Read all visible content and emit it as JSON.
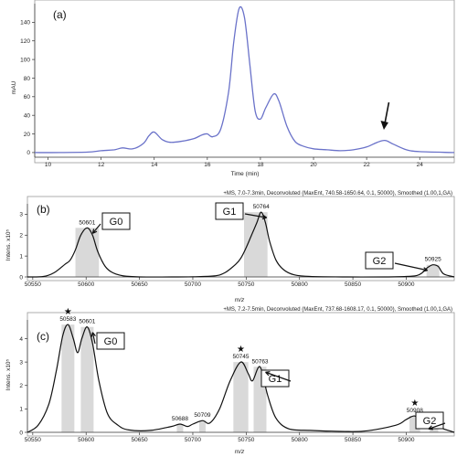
{
  "chart_data": [
    {
      "panel": "(a)",
      "type": "line",
      "ylabel": "mAU",
      "xlabel": "Time (min)",
      "xlim": [
        9.5,
        25.3
      ],
      "ylim": [
        -5,
        160
      ],
      "xticks": [
        "10",
        "12",
        "14",
        "16",
        "18",
        "20",
        "22",
        "24"
      ],
      "yticks": [
        "0",
        "20",
        "40",
        "60",
        "80",
        "100",
        "120",
        "140"
      ],
      "line_color": "#6a72c9",
      "series": [
        {
          "x": [
            9.5,
            10.5,
            11.5,
            12.0,
            12.5,
            12.8,
            13.2,
            13.6,
            13.8,
            14.0,
            14.3,
            14.6,
            15.0,
            15.5,
            15.8,
            16.0,
            16.2,
            16.5,
            16.8,
            17.0,
            17.2,
            17.4,
            17.6,
            17.8,
            18.0,
            18.2,
            18.5,
            18.7,
            19.0,
            19.3,
            19.6,
            20.0,
            20.5,
            21.0,
            21.5,
            22.0,
            22.4,
            22.7,
            23.0,
            23.5,
            24.0,
            25.3
          ],
          "y": [
            0,
            0,
            0.5,
            2,
            3,
            5,
            4,
            10,
            18,
            22,
            14,
            11,
            12,
            15,
            19,
            20,
            17,
            25,
            65,
            120,
            155,
            145,
            95,
            45,
            36,
            48,
            63,
            55,
            28,
            12,
            7,
            4,
            3,
            2,
            3,
            6,
            11,
            13,
            9,
            3,
            1,
            0
          ]
        }
      ],
      "annotations": [
        {
          "type": "arrow",
          "at_x": 22.7
        }
      ]
    },
    {
      "panel": "(b)",
      "type": "line",
      "header": "+MS, 7.0-7.3min, Deconvoluted (MaxEnt, 740.58-1650.64, 0.1, 50000), Smoothed (1.00,1,GA)",
      "ylabel": "Intens. x10⁵",
      "xlabel": "m/z",
      "xlim": [
        50545,
        50945
      ],
      "ylim": [
        0,
        3.5
      ],
      "xticks": [
        "50550",
        "50600",
        "50650",
        "50700",
        "50750",
        "50800",
        "50850",
        "50900"
      ],
      "yticks": [
        "0",
        "1",
        "2",
        "3"
      ],
      "series": [
        {
          "x": [
            50545,
            50560,
            50570,
            50580,
            50585,
            50590,
            50595,
            50601,
            50606,
            50611,
            50618,
            50625,
            50635,
            50650,
            50680,
            50700,
            50720,
            50730,
            50740,
            50745,
            50750,
            50755,
            50760,
            50764,
            50768,
            50772,
            50778,
            50785,
            50795,
            50810,
            50840,
            50880,
            50900,
            50910,
            50915,
            50920,
            50925,
            50930,
            50935,
            50945
          ],
          "y": [
            0,
            0.02,
            0.2,
            0.6,
            0.8,
            1.3,
            2.0,
            2.35,
            2.0,
            1.2,
            0.5,
            0.2,
            0.05,
            0,
            0,
            0.01,
            0.05,
            0.2,
            0.6,
            0.9,
            1.4,
            2.0,
            2.6,
            3.1,
            2.6,
            1.7,
            0.8,
            0.35,
            0.1,
            0.02,
            0,
            0,
            0.02,
            0.07,
            0.2,
            0.45,
            0.58,
            0.5,
            0.15,
            0
          ]
        }
      ],
      "labels": [
        {
          "x": 50601,
          "y": 2.35,
          "text": "50601"
        },
        {
          "x": 50764,
          "y": 3.1,
          "text": "50764"
        },
        {
          "x": 50925,
          "y": 0.58,
          "text": "50925"
        }
      ],
      "glycoforms": [
        {
          "name": "G0",
          "target_x": 50601
        },
        {
          "name": "G1",
          "target_x": 50764
        },
        {
          "name": "G2",
          "target_x": 50925
        }
      ],
      "shaded_ranges": [
        [
          50590,
          50612
        ],
        [
          50748,
          50770
        ],
        [
          50919,
          50931
        ]
      ]
    },
    {
      "panel": "(c)",
      "type": "line",
      "header": "+MS, 7.2-7.5min, Deconvoluted (MaxEnt, 737.68-1608.17, 0.1, 50000), Smoothed (1.00,1,GA)",
      "ylabel": "Intens. x10⁵",
      "xlabel": "m/z",
      "xlim": [
        50545,
        50945
      ],
      "ylim": [
        0,
        4.8
      ],
      "xticks": [
        "50550",
        "50600",
        "50650",
        "50700",
        "50750",
        "50800",
        "50850",
        "50900"
      ],
      "yticks": [
        "0",
        "1",
        "2",
        "3",
        "4"
      ],
      "series": [
        {
          "x": [
            50545,
            50555,
            50565,
            50572,
            50578,
            50583,
            50588,
            50592,
            50596,
            50601,
            50606,
            50612,
            50620,
            50630,
            50640,
            50660,
            50680,
            50688,
            50695,
            50700,
            50709,
            50716,
            50725,
            50735,
            50745,
            50752,
            50756,
            50763,
            50770,
            50778,
            50790,
            50810,
            50830,
            50860,
            50890,
            50900,
            50908,
            50915,
            50920,
            50926,
            50932,
            50945
          ],
          "y": [
            0,
            0.3,
            1.2,
            2.6,
            4.1,
            4.6,
            4.0,
            3.4,
            4.0,
            4.5,
            3.8,
            2.2,
            0.8,
            0.3,
            0.1,
            0.08,
            0.25,
            0.35,
            0.25,
            0.35,
            0.5,
            0.4,
            1.0,
            2.2,
            3.0,
            2.5,
            2.2,
            2.8,
            1.6,
            0.6,
            0.15,
            0.08,
            0.05,
            0.05,
            0.3,
            0.55,
            0.7,
            0.45,
            0.35,
            0.38,
            0.2,
            0
          ]
        }
      ],
      "labels": [
        {
          "x": 50583,
          "y": 4.6,
          "text": "50583",
          "star": true
        },
        {
          "x": 50601,
          "y": 4.5,
          "text": "50601"
        },
        {
          "x": 50688,
          "y": 0.35,
          "text": "50688"
        },
        {
          "x": 50709,
          "y": 0.5,
          "text": "50709"
        },
        {
          "x": 50745,
          "y": 3.0,
          "text": "50745",
          "star": true
        },
        {
          "x": 50763,
          "y": 2.8,
          "text": "50763"
        },
        {
          "x": 50908,
          "y": 0.7,
          "text": "50908",
          "star": true
        },
        {
          "x": 50926,
          "y": 0.38,
          "text": "50926"
        }
      ],
      "glycoforms": [
        {
          "name": "G0",
          "target_x": 50601
        },
        {
          "name": "G1",
          "target_x": 50763
        },
        {
          "name": "G2",
          "target_x": 50926
        }
      ],
      "shaded_ranges": [
        [
          50577,
          50589
        ],
        [
          50595,
          50607
        ],
        [
          50685,
          50691
        ],
        [
          50706,
          50712
        ],
        [
          50738,
          50752
        ],
        [
          50757,
          50769
        ],
        [
          50903,
          50913
        ],
        [
          50922,
          50930
        ]
      ]
    }
  ]
}
